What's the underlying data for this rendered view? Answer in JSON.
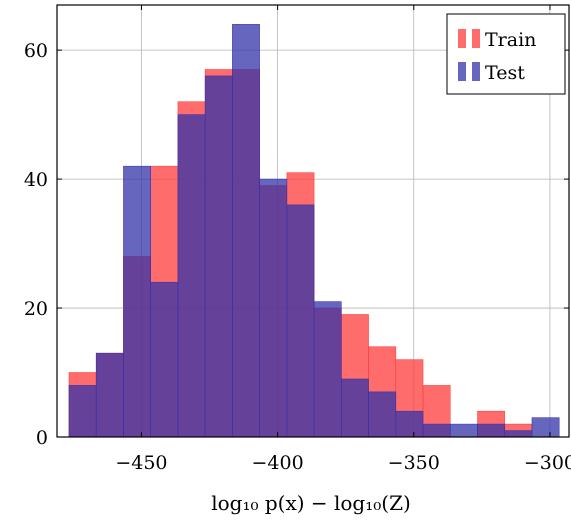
{
  "chart_data": {
    "type": "bar",
    "xlabel": "log₁₀ p(x) − log₁₀(Z)",
    "ylabel": "",
    "title": "",
    "xlim": [
      -481,
      -293
    ],
    "ylim": [
      0,
      67
    ],
    "xticks": [
      -450,
      -400,
      -350,
      -300
    ],
    "xtick_labels": [
      "−450",
      "−400",
      "−350",
      "−300"
    ],
    "yticks": [
      0,
      20,
      40,
      60
    ],
    "ytick_labels": [
      "0",
      "20",
      "40",
      "60"
    ],
    "grid": true,
    "legend_position": "top-right",
    "series": [
      {
        "name": "Train",
        "color": "#ff3b3b",
        "opacity": 0.75,
        "bins": [
          [
            -476.6,
            -466.6,
            10
          ],
          [
            -466.6,
            -456.6,
            13
          ],
          [
            -456.6,
            -446.6,
            28
          ],
          [
            -446.6,
            -436.6,
            42
          ],
          [
            -436.6,
            -426.6,
            52
          ],
          [
            -426.6,
            -416.6,
            57
          ],
          [
            -416.6,
            -406.6,
            57
          ],
          [
            -406.6,
            -396.6,
            39
          ],
          [
            -396.6,
            -386.6,
            41
          ],
          [
            -386.6,
            -376.6,
            20
          ],
          [
            -376.6,
            -366.6,
            19
          ],
          [
            -366.6,
            -356.6,
            14
          ],
          [
            -356.6,
            -346.6,
            12
          ],
          [
            -346.6,
            -336.6,
            8
          ],
          [
            -336.6,
            -326.6,
            0
          ],
          [
            -326.6,
            -316.6,
            4
          ],
          [
            -316.6,
            -306.6,
            2
          ]
        ]
      },
      {
        "name": "Test",
        "color": "#3333aa",
        "opacity": 0.75,
        "bins": [
          [
            -476.6,
            -466.6,
            8
          ],
          [
            -466.6,
            -456.6,
            13
          ],
          [
            -456.6,
            -446.6,
            42
          ],
          [
            -446.6,
            -436.6,
            24
          ],
          [
            -436.6,
            -426.6,
            50
          ],
          [
            -426.6,
            -416.6,
            56
          ],
          [
            -416.6,
            -406.6,
            64
          ],
          [
            -406.6,
            -396.6,
            40
          ],
          [
            -396.6,
            -386.6,
            36
          ],
          [
            -386.6,
            -376.6,
            21
          ],
          [
            -376.6,
            -366.6,
            9
          ],
          [
            -366.6,
            -356.6,
            7
          ],
          [
            -356.6,
            -346.6,
            4
          ],
          [
            -346.6,
            -336.6,
            2
          ],
          [
            -336.6,
            -326.6,
            2
          ],
          [
            -326.6,
            -316.6,
            2
          ],
          [
            -316.6,
            -306.6,
            1
          ],
          [
            -306.6,
            -296.6,
            3
          ]
        ]
      }
    ]
  }
}
